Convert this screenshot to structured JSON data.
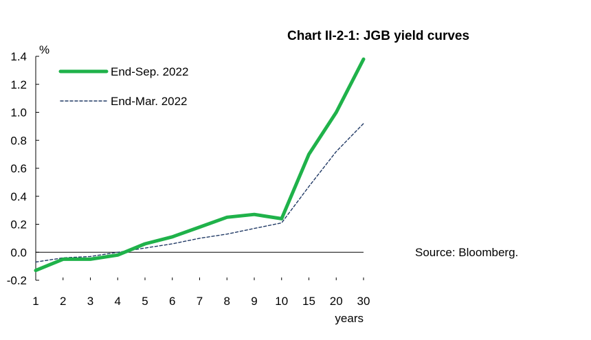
{
  "chart_data": {
    "type": "line",
    "title": "Chart II-2-1: JGB yield curves",
    "ylabel": "%",
    "xlabel": "years",
    "categories": [
      "1",
      "2",
      "3",
      "4",
      "5",
      "6",
      "7",
      "8",
      "9",
      "10",
      "15",
      "20",
      "30"
    ],
    "ylim": [
      -0.2,
      1.4
    ],
    "yticks": [
      "1.4",
      "1.2",
      "1.0",
      "0.8",
      "0.6",
      "0.4",
      "0.2",
      "0.0",
      "-0.2"
    ],
    "ytick_values": [
      1.4,
      1.2,
      1.0,
      0.8,
      0.6,
      0.4,
      0.2,
      0.0,
      -0.2
    ],
    "grid": false,
    "legend_position": "top-left",
    "series": [
      {
        "name": "End-Sep. 2022",
        "color": "#1fb24a",
        "style": "solid-thick",
        "values": [
          -0.13,
          -0.05,
          -0.05,
          -0.02,
          0.06,
          0.11,
          0.18,
          0.25,
          0.27,
          0.24,
          0.7,
          1.0,
          1.38
        ]
      },
      {
        "name": "End-Mar. 2022",
        "color": "#1f3864",
        "style": "dashed-thin",
        "values": [
          -0.07,
          -0.04,
          -0.03,
          0.0,
          0.03,
          0.06,
          0.1,
          0.13,
          0.17,
          0.21,
          0.47,
          0.72,
          0.92
        ]
      }
    ],
    "source": "Source: Bloomberg."
  }
}
